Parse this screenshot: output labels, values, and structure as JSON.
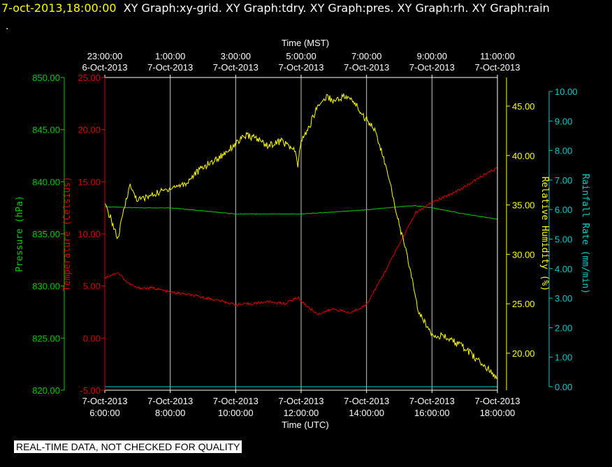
{
  "header": {
    "timestamp": "7-oct-2013,18:00:00",
    "titles": "XY Graph:xy-grid.  XY Graph:tdry.  XY Graph:pres.  XY Graph:rh.  XY Graph:rain",
    "dot": "."
  },
  "notice": "REAL-TIME DATA, NOT CHECKED FOR QUALITY",
  "chart_data": {
    "type": "line",
    "top_axis": {
      "label": "Time (MST)",
      "ticks": [
        {
          "time": "23:00:00",
          "date": "6-Oct-2013"
        },
        {
          "time": "1:00:00",
          "date": "7-Oct-2013"
        },
        {
          "time": "3:00:00",
          "date": "7-Oct-2013"
        },
        {
          "time": "5:00:00",
          "date": "7-Oct-2013"
        },
        {
          "time": "7:00:00",
          "date": "7-Oct-2013"
        },
        {
          "time": "9:00:00",
          "date": "7-Oct-2013"
        },
        {
          "time": "11:00:00",
          "date": "7-Oct-2013"
        }
      ]
    },
    "bottom_axis": {
      "label": "Time (UTC)",
      "range_hours_utc": [
        6,
        18
      ],
      "ticks": [
        {
          "date": "7-Oct-2013",
          "time": "6:00:00"
        },
        {
          "date": "7-Oct-2013",
          "time": "8:00:00"
        },
        {
          "date": "7-Oct-2013",
          "time": "10:00:00"
        },
        {
          "date": "7-Oct-2013",
          "time": "12:00:00"
        },
        {
          "date": "7-Oct-2013",
          "time": "14:00:00"
        },
        {
          "date": "7-Oct-2013",
          "time": "16:00:00"
        },
        {
          "date": "7-Oct-2013",
          "time": "18:00:00"
        }
      ]
    },
    "grid": true,
    "grid_color": "#c8c8b4",
    "axes": {
      "pressure": {
        "label": "Pressure (hPa)",
        "color": "#00cc00",
        "range": [
          820,
          850
        ],
        "ticks": [
          "850.00",
          "845.00",
          "840.00",
          "835.00",
          "830.00",
          "825.00",
          "820.00"
        ]
      },
      "temperature": {
        "label": "Temperature (Celsius)",
        "color": "#dd0000",
        "range": [
          -5,
          25
        ],
        "ticks": [
          "25.00",
          "20.00",
          "15.00",
          "10.00",
          "5.00",
          "0.00",
          "-5.00"
        ]
      },
      "rh": {
        "label": "Relative Humidity (%)",
        "color": "#ffff00",
        "ticks": [
          "45.00",
          "40.00",
          "35.00",
          "30.00",
          "25.00",
          "20.00"
        ]
      },
      "rain": {
        "label": "Rainfall Rate (mm/min)",
        "color": "#00cccc",
        "range": [
          0,
          10
        ],
        "ticks": [
          "10.00",
          "9.00",
          "8.00",
          "7.00",
          "6.00",
          "5.00",
          "4.00",
          "3.00",
          "2.00",
          "1.00",
          "0.00"
        ]
      }
    },
    "series": [
      {
        "name": "pres",
        "color": "#00cc00",
        "axis": "pressure",
        "points": [
          [
            6,
            837.6
          ],
          [
            7,
            837.5
          ],
          [
            8,
            837.5
          ],
          [
            9,
            837.2
          ],
          [
            10,
            836.9
          ],
          [
            11,
            836.9
          ],
          [
            12,
            836.9
          ],
          [
            13,
            837.1
          ],
          [
            14,
            837.3
          ],
          [
            15,
            837.6
          ],
          [
            15.5,
            837.7
          ],
          [
            16,
            837.5
          ],
          [
            17,
            836.9
          ],
          [
            18,
            836.4
          ]
        ]
      },
      {
        "name": "tdry",
        "color": "#dd0000",
        "axis": "temperature",
        "points": [
          [
            6,
            5.8
          ],
          [
            6.4,
            6.3
          ],
          [
            6.7,
            5.3
          ],
          [
            7,
            4.8
          ],
          [
            7.5,
            4.8
          ],
          [
            8,
            4.4
          ],
          [
            8.5,
            4.2
          ],
          [
            9,
            3.9
          ],
          [
            9.5,
            3.6
          ],
          [
            10,
            3.2
          ],
          [
            10.5,
            3.3
          ],
          [
            11,
            3.5
          ],
          [
            11.5,
            3.3
          ],
          [
            11.9,
            3.9
          ],
          [
            12.2,
            3.0
          ],
          [
            12.5,
            2.3
          ],
          [
            13,
            2.8
          ],
          [
            13.5,
            2.4
          ],
          [
            14,
            3.2
          ],
          [
            14.5,
            6.0
          ],
          [
            15,
            9.0
          ],
          [
            15.5,
            12.0
          ],
          [
            16,
            13.0
          ],
          [
            16.5,
            13.7
          ],
          [
            17,
            14.5
          ],
          [
            17.5,
            15.5
          ],
          [
            18,
            16.3
          ]
        ]
      },
      {
        "name": "rh",
        "color": "#ffff00",
        "axis": "rh",
        "points": [
          [
            6,
            35.0
          ],
          [
            6.2,
            33.5
          ],
          [
            6.4,
            31.5
          ],
          [
            6.55,
            34.0
          ],
          [
            6.75,
            37.0
          ],
          [
            7,
            35.5
          ],
          [
            7.3,
            35.8
          ],
          [
            7.6,
            36.2
          ],
          [
            8,
            36.7
          ],
          [
            8.5,
            37.2
          ],
          [
            8.7,
            38.0
          ],
          [
            9,
            38.8
          ],
          [
            9.5,
            39.8
          ],
          [
            10,
            41.2
          ],
          [
            10.3,
            42.0
          ],
          [
            10.6,
            41.8
          ],
          [
            11,
            41.0
          ],
          [
            11.4,
            41.5
          ],
          [
            11.8,
            40.5
          ],
          [
            11.9,
            39.0
          ],
          [
            12,
            41.5
          ],
          [
            12.2,
            42.5
          ],
          [
            12.5,
            45.0
          ],
          [
            12.8,
            46.0
          ],
          [
            13,
            45.5
          ],
          [
            13.3,
            46.0
          ],
          [
            13.6,
            45.5
          ],
          [
            13.9,
            44.0
          ],
          [
            14.2,
            43.0
          ],
          [
            14.5,
            40.0
          ],
          [
            14.8,
            36.0
          ],
          [
            15,
            33.0
          ],
          [
            15.3,
            29.0
          ],
          [
            15.6,
            24.0
          ],
          [
            16,
            22.0
          ],
          [
            16.5,
            21.5
          ],
          [
            17,
            20.5
          ],
          [
            17.5,
            19.0
          ],
          [
            18,
            17.5
          ]
        ]
      },
      {
        "name": "rain",
        "color": "#00cccc",
        "axis": "rain",
        "points": [
          [
            6,
            0.0
          ],
          [
            18,
            0.0
          ]
        ]
      }
    ]
  }
}
